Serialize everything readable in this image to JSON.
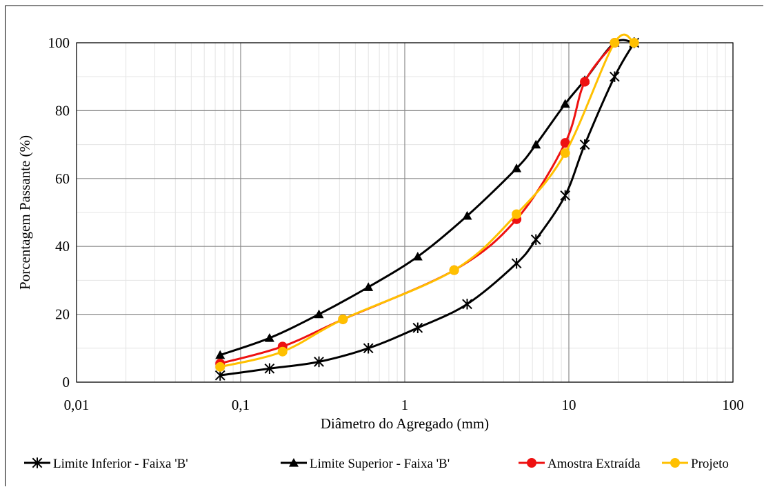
{
  "chart_data": {
    "type": "line",
    "title": "",
    "xlabel": "Diâmetro do Agregado (mm)",
    "ylabel": "Porcentagem Passante (%)",
    "xscale": "log",
    "xlim": [
      0.01,
      100
    ],
    "ylim": [
      0,
      100
    ],
    "x_ticks": [
      0.01,
      0.1,
      1,
      10,
      100
    ],
    "x_tick_labels": [
      "0,01",
      "0,1",
      "1",
      "10",
      "100"
    ],
    "y_ticks": [
      0,
      20,
      40,
      60,
      80,
      100
    ],
    "y_tick_labels": [
      "0",
      "20",
      "40",
      "60",
      "80",
      "100"
    ],
    "grid": "major and minor",
    "legend_position": "bottom",
    "series": [
      {
        "name": "Limite Inferior - Faixa 'B'",
        "color": "#000000",
        "marker": "star",
        "x": [
          0.075,
          0.15,
          0.3,
          0.6,
          1.2,
          2.4,
          4.8,
          6.3,
          9.5,
          12.5,
          19,
          25
        ],
        "y": [
          2,
          4,
          6,
          10,
          16,
          23,
          35,
          42,
          55,
          70,
          90,
          100
        ]
      },
      {
        "name": "Limite Superior - Faixa 'B'",
        "color": "#000000",
        "marker": "triangle",
        "x": [
          0.075,
          0.15,
          0.3,
          0.6,
          1.2,
          2.4,
          4.8,
          6.3,
          9.5,
          12.5,
          19,
          25
        ],
        "y": [
          8,
          13,
          20,
          28,
          37,
          49,
          63,
          70,
          82,
          89,
          100,
          100
        ]
      },
      {
        "name": "Amostra Extraída",
        "color": "#ee1111",
        "marker": "circle",
        "x": [
          0.075,
          0.18,
          0.42,
          2.0,
          4.8,
          9.5,
          12.5,
          19
        ],
        "y": [
          5.5,
          10.5,
          18.5,
          33,
          48,
          70.5,
          88.5,
          100
        ]
      },
      {
        "name": "Projeto",
        "color": "#ffc000",
        "marker": "circle",
        "x": [
          0.075,
          0.18,
          0.42,
          2.0,
          4.8,
          9.5,
          19,
          25
        ],
        "y": [
          4.5,
          9,
          18.5,
          33,
          49.5,
          67.5,
          100,
          100
        ]
      }
    ]
  }
}
